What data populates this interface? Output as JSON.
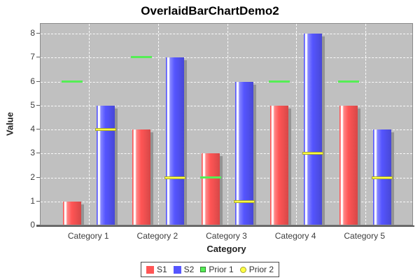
{
  "chart_data": {
    "type": "bar",
    "title": "OverlaidBarChartDemo2",
    "xlabel": "Category",
    "ylabel": "Value",
    "categories": [
      "Category 1",
      "Category 2",
      "Category 3",
      "Category 4",
      "Category 5"
    ],
    "series": [
      {
        "name": "S1",
        "render": "bar",
        "color": "#ff5555",
        "legend_shape": "square",
        "values": [
          1,
          4,
          3,
          5,
          5
        ]
      },
      {
        "name": "S2",
        "render": "bar",
        "color": "#5555ff",
        "legend_shape": "square",
        "values": [
          5,
          7,
          6,
          8,
          4
        ]
      },
      {
        "name": "Prior 1",
        "render": "line-marker",
        "over_series": "S1",
        "color": "#55ee55",
        "legend_shape": "square-outline",
        "values": [
          6,
          7,
          2,
          6,
          6
        ]
      },
      {
        "name": "Prior 2",
        "render": "line-marker",
        "over_series": "S2",
        "color": "#ffff44",
        "legend_shape": "circle-outline",
        "values": [
          4,
          2,
          1,
          3,
          2
        ]
      }
    ],
    "ylim": [
      0,
      8
    ],
    "yticks": [
      0,
      1,
      2,
      3,
      4,
      5,
      6,
      7,
      8
    ],
    "grid": "white-dashed",
    "plot_background": "#c0c0c0",
    "legend_position": "bottom"
  }
}
